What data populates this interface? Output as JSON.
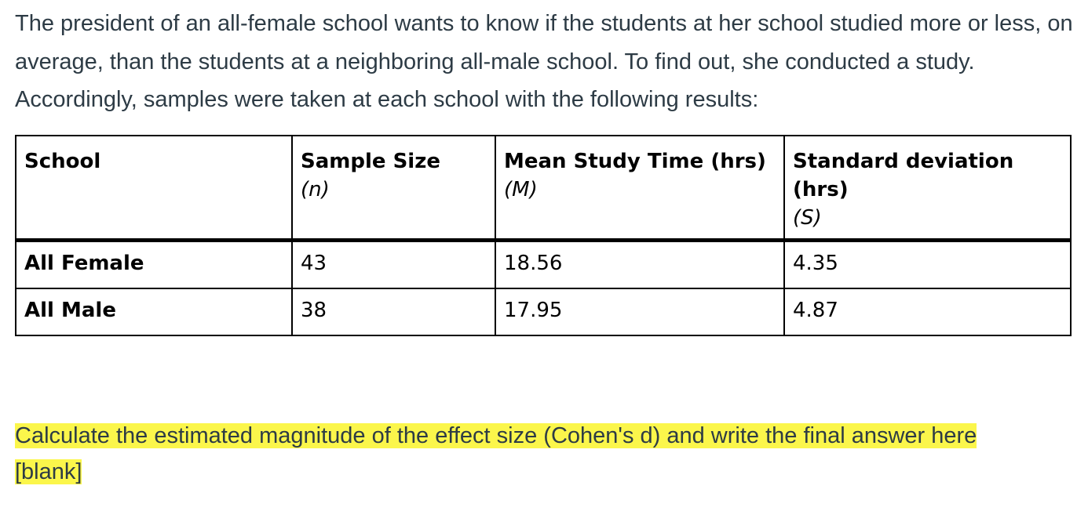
{
  "intro": {
    "text": "The president of an all-female school wants to know if the students at her school studied more or less, on average, than the students at a neighboring all-male school. To find out, she conducted a study. Accordingly, samples were taken at each school with the following results:"
  },
  "table": {
    "headers": [
      {
        "label": "School",
        "symbol": ""
      },
      {
        "label": "Sample Size",
        "symbol": "(n)"
      },
      {
        "label": "Mean Study Time (hrs)",
        "symbol": "(M)"
      },
      {
        "label": "Standard deviation (hrs)",
        "symbol": "(S)"
      }
    ],
    "rows": [
      {
        "school": "All Female",
        "n": "43",
        "mean": "18.56",
        "sd": "4.35"
      },
      {
        "school": "All Male",
        "n": "38",
        "mean": "17.95",
        "sd": "4.87"
      }
    ]
  },
  "question": {
    "text": "Calculate the estimated magnitude of the effect size (Cohen's d) and write the final answer here",
    "blank": "[blank]"
  },
  "colors": {
    "highlight": "#fbf64b",
    "text": "#2d3b45"
  }
}
